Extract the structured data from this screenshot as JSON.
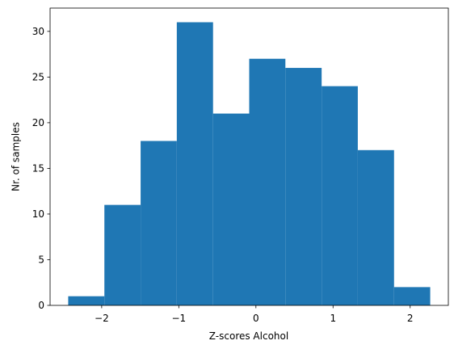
{
  "chart_data": {
    "type": "histogram",
    "xlabel": "Z-scores Alcohol",
    "ylabel": "Nr. of samples",
    "bins": [
      -2.434,
      -1.965,
      -1.495,
      -1.026,
      -0.556,
      -0.087,
      0.382,
      0.852,
      1.321,
      1.791,
      2.26
    ],
    "values": [
      1,
      11,
      18,
      31,
      21,
      27,
      26,
      24,
      17,
      2
    ],
    "color": "#1f77b4",
    "xlim": [
      -2.669,
      2.495
    ],
    "xticks": [
      {
        "value": -2,
        "label": "−2"
      },
      {
        "value": -1,
        "label": "−1"
      },
      0,
      1,
      2
    ],
    "ylim": [
      0,
      32.55
    ],
    "yticks": [
      0,
      5,
      10,
      15,
      20,
      25,
      30
    ]
  }
}
